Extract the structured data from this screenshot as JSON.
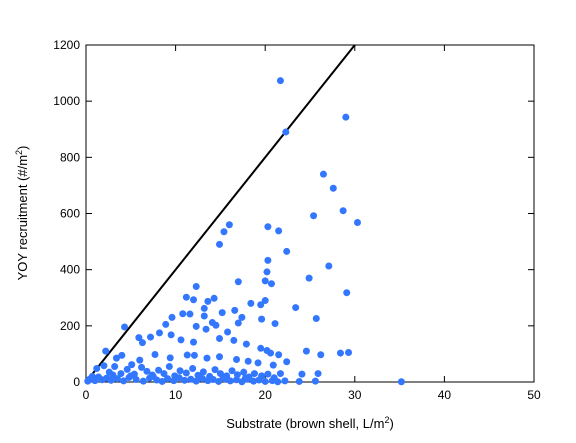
{
  "chart_data": {
    "type": "scatter",
    "title": "",
    "xlabel": "Substrate (brown shell, L/m",
    "xlabel_sup": "2",
    "xlabel_end": ")",
    "ylabel": "YOY recruitment (#/m",
    "ylabel_sup": "2",
    "ylabel_end": ")",
    "xlim": [
      0,
      50
    ],
    "ylim": [
      0,
      1200
    ],
    "xticks": [
      0,
      10,
      20,
      30,
      40,
      50
    ],
    "yticks": [
      0,
      200,
      400,
      600,
      800,
      1000,
      1200
    ],
    "grid": false,
    "legend": "none",
    "point_color": "#3377ff",
    "line_color": "#000000",
    "reference_line": {
      "x": [
        0,
        30
      ],
      "y": [
        0,
        1200
      ]
    },
    "series": [
      {
        "points": [
          [
            21.7,
            1073
          ],
          [
            22.3,
            890
          ],
          [
            29.0,
            943
          ],
          [
            26.5,
            740
          ],
          [
            27.6,
            690
          ],
          [
            28.7,
            610
          ],
          [
            30.3,
            568
          ],
          [
            25.4,
            592
          ],
          [
            20.3,
            553
          ],
          [
            21.5,
            538
          ],
          [
            16.0,
            560
          ],
          [
            15.4,
            535
          ],
          [
            14.9,
            490
          ],
          [
            22.4,
            465
          ],
          [
            27.1,
            413
          ],
          [
            20.3,
            433
          ],
          [
            20.2,
            392
          ],
          [
            24.9,
            370
          ],
          [
            20.0,
            360
          ],
          [
            17.0,
            357
          ],
          [
            20.7,
            350
          ],
          [
            29.1,
            318
          ],
          [
            23.4,
            265
          ],
          [
            12.3,
            340
          ],
          [
            11.2,
            302
          ],
          [
            12.0,
            293
          ],
          [
            13.6,
            287
          ],
          [
            13.2,
            262
          ],
          [
            14.3,
            298
          ],
          [
            16.6,
            255
          ],
          [
            15.2,
            247
          ],
          [
            10.8,
            243
          ],
          [
            11.6,
            242
          ],
          [
            13.2,
            235
          ],
          [
            18.4,
            280
          ],
          [
            19.5,
            275
          ],
          [
            20.0,
            290
          ],
          [
            25.7,
            226
          ],
          [
            21.1,
            208
          ],
          [
            19.6,
            224
          ],
          [
            17.4,
            230
          ],
          [
            14.1,
            212
          ],
          [
            9.6,
            230
          ],
          [
            8.9,
            205
          ],
          [
            12.3,
            198
          ],
          [
            13.4,
            188
          ],
          [
            14.5,
            202
          ],
          [
            15.8,
            178
          ],
          [
            17.0,
            210
          ],
          [
            4.3,
            196
          ],
          [
            7.2,
            160
          ],
          [
            5.9,
            158
          ],
          [
            6.3,
            140
          ],
          [
            8.2,
            175
          ],
          [
            9.5,
            168
          ],
          [
            10.6,
            150
          ],
          [
            12.0,
            142
          ],
          [
            14.9,
            155
          ],
          [
            16.5,
            148
          ],
          [
            17.9,
            135
          ],
          [
            19.5,
            120
          ],
          [
            20.2,
            112
          ],
          [
            20.6,
            103
          ],
          [
            21.5,
            97
          ],
          [
            24.6,
            110
          ],
          [
            26.2,
            97
          ],
          [
            28.4,
            103
          ],
          [
            29.3,
            105
          ],
          [
            2.2,
            110
          ],
          [
            3.4,
            85
          ],
          [
            4.0,
            95
          ],
          [
            5.1,
            62
          ],
          [
            6.0,
            78
          ],
          [
            7.7,
            98
          ],
          [
            9.4,
            86
          ],
          [
            11.3,
            96
          ],
          [
            12.1,
            95
          ],
          [
            13.5,
            85
          ],
          [
            14.9,
            90
          ],
          [
            16.8,
            80
          ],
          [
            18.1,
            74
          ],
          [
            19.2,
            68
          ],
          [
            20.9,
            60
          ],
          [
            22.4,
            72
          ],
          [
            1.2,
            48
          ],
          [
            2.0,
            58
          ],
          [
            2.6,
            35
          ],
          [
            3.2,
            55
          ],
          [
            3.9,
            30
          ],
          [
            4.6,
            45
          ],
          [
            5.4,
            28
          ],
          [
            6.2,
            52
          ],
          [
            6.8,
            38
          ],
          [
            7.4,
            25
          ],
          [
            8.1,
            42
          ],
          [
            8.7,
            30
          ],
          [
            9.3,
            55
          ],
          [
            9.9,
            22
          ],
          [
            10.5,
            40
          ],
          [
            11.2,
            32
          ],
          [
            11.9,
            48
          ],
          [
            12.5,
            24
          ],
          [
            13.1,
            36
          ],
          [
            13.8,
            20
          ],
          [
            14.4,
            44
          ],
          [
            15.0,
            30
          ],
          [
            15.7,
            22
          ],
          [
            16.3,
            40
          ],
          [
            16.9,
            26
          ],
          [
            17.6,
            35
          ],
          [
            18.2,
            18
          ],
          [
            18.8,
            30
          ],
          [
            19.6,
            22
          ],
          [
            20.3,
            28
          ],
          [
            21.0,
            15
          ],
          [
            21.7,
            30
          ],
          [
            24.1,
            28
          ],
          [
            25.9,
            30
          ],
          [
            0.4,
            10
          ],
          [
            0.7,
            20
          ],
          [
            1.0,
            5
          ],
          [
            1.4,
            18
          ],
          [
            1.8,
            8
          ],
          [
            2.3,
            14
          ],
          [
            2.8,
            6
          ],
          [
            3.5,
            12
          ],
          [
            4.2,
            4
          ],
          [
            4.8,
            16
          ],
          [
            5.6,
            9
          ],
          [
            6.4,
            3
          ],
          [
            7.1,
            14
          ],
          [
            7.9,
            7
          ],
          [
            8.5,
            2
          ],
          [
            9.1,
            12
          ],
          [
            9.8,
            5
          ],
          [
            10.4,
            15
          ],
          [
            11.0,
            6
          ],
          [
            11.7,
            10
          ],
          [
            12.3,
            3
          ],
          [
            13.0,
            12
          ],
          [
            13.6,
            5
          ],
          [
            14.2,
            9
          ],
          [
            14.8,
            2
          ],
          [
            15.5,
            11
          ],
          [
            16.1,
            4
          ],
          [
            16.8,
            8
          ],
          [
            17.4,
            1
          ],
          [
            18.0,
            10
          ],
          [
            18.7,
            3
          ],
          [
            19.3,
            7
          ],
          [
            20.0,
            2
          ],
          [
            20.8,
            5
          ],
          [
            21.4,
            1
          ],
          [
            22.2,
            4
          ],
          [
            23.8,
            2
          ],
          [
            25.6,
            3
          ],
          [
            35.2,
            1
          ],
          [
            0.2,
            3
          ],
          [
            3.0,
            25
          ],
          [
            5.0,
            22
          ],
          [
            7.5,
            20
          ],
          [
            10.0,
            18
          ],
          [
            12.8,
            16
          ],
          [
            15.3,
            18
          ],
          [
            17.8,
            14
          ]
        ]
      }
    ]
  }
}
